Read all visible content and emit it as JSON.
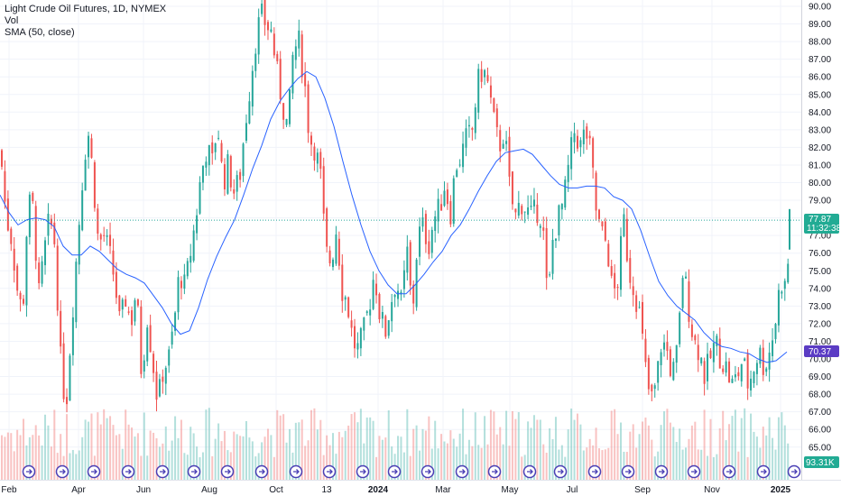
{
  "legend": {
    "title": "Light Crude Oil Futures, 1D, NYMEX",
    "vol": "Vol",
    "sma": "SMA (50, close)"
  },
  "colors": {
    "up": "#26a69a",
    "down": "#ef5350",
    "sma": "#2962ff",
    "price_tag": "#22ab94",
    "sma_tag": "#5b3cc4",
    "vol_tag": "#22ab94"
  },
  "tags": {
    "price": "77.87",
    "countdown": "11:32:38",
    "sma": "70.37",
    "volume": "93.31K"
  },
  "chart_data": {
    "type": "candlestick",
    "title": "Light Crude Oil Futures, 1D, NYMEX",
    "ylim": [
      64,
      90.5
    ],
    "y_ticks": [
      "65.00",
      "66.00",
      "67.00",
      "68.00",
      "69.00",
      "70.00",
      "71.00",
      "72.00",
      "73.00",
      "74.00",
      "75.00",
      "76.00",
      "77.00",
      "78.00",
      "79.00",
      "80.00",
      "81.00",
      "82.00",
      "83.00",
      "84.00",
      "85.00",
      "86.00",
      "87.00",
      "88.00",
      "89.00",
      "90.00"
    ],
    "x_ticks": [
      "Feb",
      "Apr",
      "Jun",
      "Aug",
      "Oct",
      "13",
      "2024",
      "Mar",
      "May",
      "Jul",
      "Sep",
      "Nov",
      "2025"
    ],
    "last_price": 77.87,
    "sma_last": 70.37,
    "volume_last": "93.31K",
    "close_path": [
      [
        0,
        81.5
      ],
      [
        6,
        78
      ],
      [
        12,
        76.8
      ],
      [
        18,
        74
      ],
      [
        24,
        72.5
      ],
      [
        30,
        78.8
      ],
      [
        36,
        78.5
      ],
      [
        42,
        73.5
      ],
      [
        48,
        76
      ],
      [
        54,
        78
      ],
      [
        60,
        76.5
      ],
      [
        66,
        70
      ],
      [
        72,
        67.2
      ],
      [
        78,
        71.8
      ],
      [
        84,
        76
      ],
      [
        90,
        80
      ],
      [
        96,
        83.2
      ],
      [
        102,
        80.5
      ],
      [
        108,
        76.5
      ],
      [
        114,
        77
      ],
      [
        120,
        76
      ],
      [
        126,
        74.5
      ],
      [
        132,
        71.8
      ],
      [
        138,
        73.5
      ],
      [
        144,
        72
      ],
      [
        150,
        74
      ],
      [
        156,
        69
      ],
      [
        162,
        72.5
      ],
      [
        168,
        70
      ],
      [
        174,
        67.5
      ],
      [
        180,
        69.5
      ],
      [
        186,
        70
      ],
      [
        192,
        72
      ],
      [
        198,
        75
      ],
      [
        204,
        74
      ],
      [
        210,
        76
      ],
      [
        216,
        78
      ],
      [
        222,
        80.5
      ],
      [
        228,
        82
      ],
      [
        234,
        81
      ],
      [
        240,
        83.5
      ],
      [
        246,
        80
      ],
      [
        252,
        81
      ],
      [
        258,
        79.5
      ],
      [
        264,
        80
      ],
      [
        270,
        83
      ],
      [
        276,
        85.5
      ],
      [
        282,
        88
      ],
      [
        288,
        89.5
      ],
      [
        294,
        89
      ],
      [
        300,
        88.5
      ],
      [
        306,
        86.2
      ],
      [
        312,
        84.5
      ],
      [
        318,
        83
      ],
      [
        324,
        87.5
      ],
      [
        330,
        88
      ],
      [
        336,
        86
      ],
      [
        342,
        82.5
      ],
      [
        348,
        82
      ],
      [
        354,
        80.5
      ],
      [
        360,
        76
      ],
      [
        366,
        75.5
      ],
      [
        372,
        77.5
      ],
      [
        378,
        74
      ],
      [
        384,
        73.2
      ],
      [
        390,
        71
      ],
      [
        396,
        70.5
      ],
      [
        402,
        71.5
      ],
      [
        408,
        73
      ],
      [
        414,
        75
      ],
      [
        420,
        72.5
      ],
      [
        426,
        71.5
      ],
      [
        432,
        73.2
      ],
      [
        438,
        74.5
      ],
      [
        444,
        73
      ],
      [
        450,
        76.2
      ],
      [
        456,
        72.5
      ],
      [
        462,
        77
      ],
      [
        468,
        77.5
      ],
      [
        474,
        76.5
      ],
      [
        480,
        78
      ],
      [
        486,
        78.5
      ],
      [
        492,
        80
      ],
      [
        498,
        78.2
      ],
      [
        504,
        81
      ],
      [
        510,
        81.5
      ],
      [
        516,
        82.5
      ],
      [
        522,
        82.8
      ],
      [
        528,
        85.5
      ],
      [
        534,
        86.5
      ],
      [
        540,
        85.5
      ],
      [
        546,
        83.5
      ],
      [
        552,
        82
      ],
      [
        558,
        83
      ],
      [
        564,
        79.5
      ],
      [
        570,
        78
      ],
      [
        576,
        79
      ],
      [
        582,
        78.5
      ],
      [
        588,
        78
      ],
      [
        594,
        78.5
      ],
      [
        600,
        78
      ],
      [
        606,
        73
      ],
      [
        612,
        77
      ],
      [
        618,
        78
      ],
      [
        624,
        79
      ],
      [
        630,
        81.2
      ],
      [
        636,
        83
      ],
      [
        642,
        82
      ],
      [
        648,
        83
      ],
      [
        654,
        81.5
      ],
      [
        660,
        78.2
      ],
      [
        666,
        77
      ],
      [
        672,
        76.5
      ],
      [
        678,
        73.5
      ],
      [
        684,
        74.5
      ],
      [
        690,
        78
      ],
      [
        696,
        75
      ],
      [
        702,
        74
      ],
      [
        708,
        72.5
      ],
      [
        714,
        69.5
      ],
      [
        720,
        67.5
      ],
      [
        726,
        68.5
      ],
      [
        732,
        71
      ],
      [
        738,
        70.5
      ],
      [
        744,
        69
      ],
      [
        750,
        70.5
      ],
      [
        756,
        75.2
      ],
      [
        762,
        73
      ],
      [
        768,
        71
      ],
      [
        774,
        70.5
      ],
      [
        780,
        69
      ],
      [
        786,
        70
      ],
      [
        792,
        71
      ],
      [
        798,
        70
      ],
      [
        804,
        69.5
      ],
      [
        810,
        68.5
      ],
      [
        816,
        69
      ],
      [
        822,
        70
      ],
      [
        828,
        68.5
      ],
      [
        834,
        69.5
      ],
      [
        840,
        70.5
      ],
      [
        846,
        69.5
      ],
      [
        852,
        70.5
      ],
      [
        858,
        72
      ],
      [
        864,
        74.5
      ],
      [
        870,
        74
      ],
      [
        876,
        77.9
      ]
    ],
    "sma_path": [
      [
        0,
        79.3
      ],
      [
        10,
        78.3
      ],
      [
        20,
        77.6
      ],
      [
        30,
        77.9
      ],
      [
        40,
        78
      ],
      [
        50,
        77.9
      ],
      [
        60,
        77.5
      ],
      [
        70,
        76.4
      ],
      [
        80,
        75.9
      ],
      [
        90,
        75.9
      ],
      [
        100,
        76.4
      ],
      [
        110,
        76.1
      ],
      [
        120,
        75.6
      ],
      [
        130,
        75.1
      ],
      [
        140,
        74.8
      ],
      [
        150,
        74.6
      ],
      [
        160,
        74.3
      ],
      [
        170,
        73.6
      ],
      [
        180,
        72.9
      ],
      [
        190,
        72.0
      ],
      [
        200,
        71.4
      ],
      [
        210,
        71.6
      ],
      [
        220,
        72.9
      ],
      [
        230,
        74.5
      ],
      [
        240,
        75.8
      ],
      [
        250,
        76.9
      ],
      [
        260,
        77.9
      ],
      [
        270,
        79.3
      ],
      [
        280,
        80.8
      ],
      [
        290,
        82.1
      ],
      [
        300,
        83.6
      ],
      [
        310,
        84.6
      ],
      [
        320,
        85.3
      ],
      [
        330,
        85.9
      ],
      [
        340,
        86.3
      ],
      [
        350,
        86.0
      ],
      [
        360,
        84.8
      ],
      [
        370,
        83.2
      ],
      [
        380,
        81.2
      ],
      [
        390,
        79.3
      ],
      [
        400,
        77.6
      ],
      [
        410,
        76.1
      ],
      [
        420,
        75.0
      ],
      [
        430,
        74.2
      ],
      [
        440,
        73.7
      ],
      [
        450,
        73.7
      ],
      [
        460,
        74.2
      ],
      [
        470,
        74.8
      ],
      [
        480,
        75.5
      ],
      [
        490,
        76.1
      ],
      [
        500,
        77.0
      ],
      [
        510,
        77.6
      ],
      [
        520,
        78.5
      ],
      [
        530,
        79.5
      ],
      [
        540,
        80.4
      ],
      [
        550,
        81.2
      ],
      [
        560,
        81.7
      ],
      [
        570,
        81.8
      ],
      [
        580,
        81.9
      ],
      [
        590,
        81.6
      ],
      [
        600,
        81.0
      ],
      [
        610,
        80.4
      ],
      [
        620,
        79.9
      ],
      [
        630,
        79.7
      ],
      [
        640,
        79.7
      ],
      [
        650,
        79.8
      ],
      [
        660,
        79.8
      ],
      [
        670,
        79.7
      ],
      [
        680,
        79.2
      ],
      [
        690,
        79.0
      ],
      [
        700,
        78.5
      ],
      [
        710,
        77.3
      ],
      [
        720,
        75.8
      ],
      [
        730,
        74.4
      ],
      [
        740,
        73.6
      ],
      [
        750,
        73.0
      ],
      [
        760,
        72.6
      ],
      [
        770,
        72.2
      ],
      [
        780,
        71.5
      ],
      [
        790,
        71.0
      ],
      [
        800,
        70.7
      ],
      [
        810,
        70.6
      ],
      [
        820,
        70.4
      ],
      [
        830,
        70.3
      ],
      [
        840,
        70.0
      ],
      [
        850,
        69.8
      ],
      [
        860,
        69.9
      ],
      [
        872,
        70.4
      ]
    ]
  }
}
